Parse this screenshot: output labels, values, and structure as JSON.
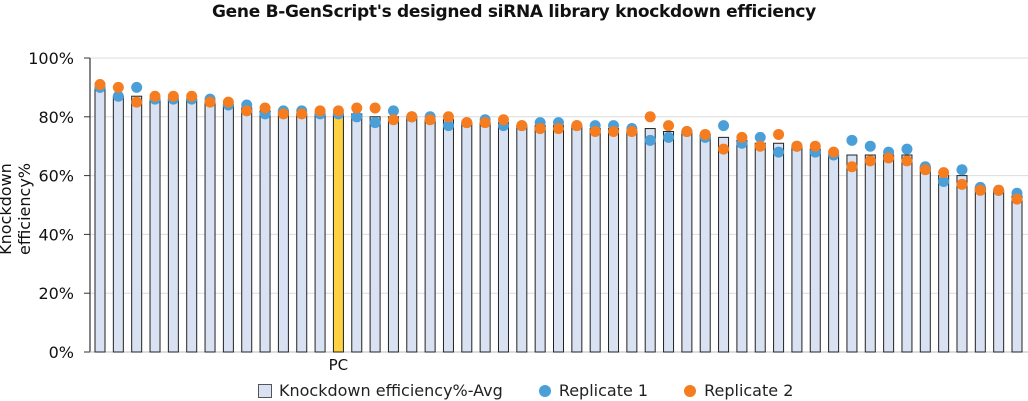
{
  "chart_data": {
    "type": "bar",
    "title": "Gene B-GenScript's designed siRNA library knockdown efficiency",
    "xlabel": "",
    "ylabel": "Knockdown efficiency%",
    "ylim": [
      0,
      100
    ],
    "yticks": [
      "0%",
      "20%",
      "40%",
      "60%",
      "80%",
      "100%"
    ],
    "grid": true,
    "legend_position": "bottom",
    "highlight": {
      "index": 13,
      "label": "PC",
      "color": "#ffd242"
    },
    "categories": [
      "",
      "",
      "",
      "",
      "",
      "",
      "",
      "",
      "",
      "",
      "",
      "",
      "",
      "PC",
      "",
      "",
      "",
      "",
      "",
      "",
      "",
      "",
      "",
      "",
      "",
      "",
      "",
      "",
      "",
      "",
      "",
      "",
      "",
      "",
      "",
      "",
      "",
      "",
      "",
      "",
      "",
      "",
      "",
      "",
      "",
      "",
      "",
      "",
      "",
      "",
      ""
    ],
    "series": [
      {
        "name": "Knockdown efficiency%-Avg",
        "kind": "bar",
        "color": "#d9e2f3",
        "values": [
          90,
          87,
          87,
          86,
          86,
          86,
          85,
          84,
          83,
          82,
          82,
          81,
          81,
          81,
          81,
          80,
          80,
          80,
          79,
          79,
          78,
          78,
          78,
          77,
          77,
          77,
          77,
          76,
          76,
          75,
          76,
          75,
          75,
          74,
          73,
          72,
          71,
          71,
          70,
          69,
          67,
          67,
          67,
          67,
          67,
          63,
          60,
          60,
          56,
          55,
          53
        ]
      },
      {
        "name": "Replicate 1",
        "kind": "scatter",
        "color": "#4a9fd8",
        "values": [
          90,
          87,
          90,
          86,
          86,
          86,
          86,
          84,
          84,
          81,
          82,
          82,
          81,
          81,
          80,
          78,
          82,
          80,
          80,
          77,
          78,
          79,
          77,
          77,
          78,
          78,
          77,
          77,
          77,
          76,
          72,
          73,
          75,
          73,
          77,
          71,
          73,
          68,
          70,
          68,
          67,
          72,
          70,
          68,
          69,
          63,
          58,
          62,
          56,
          55,
          54
        ]
      },
      {
        "name": "Replicate 2",
        "kind": "scatter",
        "color": "#f57c1f",
        "values": [
          91,
          90,
          85,
          87,
          87,
          87,
          85,
          85,
          82,
          83,
          81,
          81,
          82,
          82,
          83,
          83,
          79,
          80,
          79,
          80,
          78,
          78,
          79,
          77,
          76,
          76,
          77,
          75,
          75,
          75,
          80,
          77,
          75,
          74,
          69,
          73,
          70,
          74,
          70,
          70,
          68,
          63,
          65,
          66,
          65,
          62,
          61,
          57,
          55,
          55,
          52
        ]
      }
    ]
  },
  "legend": {
    "avg": "Knockdown efficiency%-Avg",
    "r1": "Replicate 1",
    "r2": "Replicate 2"
  }
}
